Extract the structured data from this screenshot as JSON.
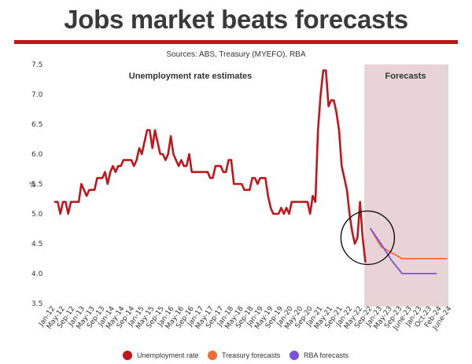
{
  "header": {
    "title": "Jobs market beats forecasts",
    "subtitle": "Sources: ABS, Treasury (MYEFO), RBA"
  },
  "colors": {
    "unemployment": "#c0161b",
    "treasury": "#f26b3a",
    "rba": "#7b52d9",
    "forecast_band": "#e8d4d6",
    "title_rule": "#c0161b",
    "circle": "#111111"
  },
  "chart_data": {
    "type": "line",
    "title": "Jobs market beats forecasts",
    "subtitle": "Sources: ABS, Treasury (MYEFO), RBA",
    "ylabel": "%",
    "xlabel": "",
    "ylim": [
      3.5,
      7.5
    ],
    "yticks": [
      "7.5",
      "7.0",
      "6.5",
      "6.0",
      "5.5",
      "5.0",
      "4.5",
      "4.0",
      "3.5"
    ],
    "xticks": [
      "Jan-12",
      "May-12",
      "Sep-12",
      "Jan-13",
      "May-13",
      "Sep-13",
      "Jan-14",
      "May-14",
      "Sep-14",
      "Jan-15",
      "May-15",
      "Sep-15",
      "Jan-16",
      "May-16",
      "Sep-16",
      "Jan-17",
      "May-17",
      "Sep-17",
      "Jan-18",
      "May-18",
      "Sep-18",
      "Jan-19",
      "May-19",
      "Sep-19",
      "Jan-20",
      "May-20",
      "Sep-20",
      "Jan-21",
      "May-21",
      "Sep-21",
      "Jan-22",
      "May-22",
      "Sep-22",
      "Jan-23",
      "May-23",
      "Sep-23",
      "June-23",
      "Jan-23",
      "Oct-23",
      "Feb-24",
      "June-24"
    ],
    "grid": false,
    "legend_position": "bottom",
    "regions": [
      {
        "label": "Unemployment rate estimates"
      },
      {
        "label": "Forecasts",
        "from": "Jan-22",
        "to": "June-24"
      }
    ],
    "series": [
      {
        "name": "Unemployment rate",
        "color": "#c0161b",
        "points": [
          [
            "Jan-12",
            5.2
          ],
          [
            "Feb-12",
            5.2
          ],
          [
            "Mar-12",
            5.0
          ],
          [
            "Apr-12",
            5.2
          ],
          [
            "May-12",
            5.2
          ],
          [
            "Jun-12",
            5.0
          ],
          [
            "Jul-12",
            5.2
          ],
          [
            "Aug-12",
            5.2
          ],
          [
            "Sep-12",
            5.2
          ],
          [
            "Oct-12",
            5.2
          ],
          [
            "Nov-12",
            5.5
          ],
          [
            "Dec-12",
            5.4
          ],
          [
            "Jan-13",
            5.3
          ],
          [
            "Feb-13",
            5.4
          ],
          [
            "Mar-13",
            5.4
          ],
          [
            "Apr-13",
            5.4
          ],
          [
            "May-13",
            5.6
          ],
          [
            "Jun-13",
            5.6
          ],
          [
            "Jul-13",
            5.6
          ],
          [
            "Aug-13",
            5.7
          ],
          [
            "Sep-13",
            5.5
          ],
          [
            "Oct-13",
            5.7
          ],
          [
            "Nov-13",
            5.8
          ],
          [
            "Dec-13",
            5.7
          ],
          [
            "Jan-14",
            5.8
          ],
          [
            "Feb-14",
            5.8
          ],
          [
            "Mar-14",
            5.9
          ],
          [
            "Apr-14",
            5.9
          ],
          [
            "May-14",
            5.9
          ],
          [
            "Jun-14",
            5.9
          ],
          [
            "Jul-14",
            5.8
          ],
          [
            "Aug-14",
            5.9
          ],
          [
            "Sep-14",
            6.1
          ],
          [
            "Oct-14",
            6.0
          ],
          [
            "Nov-14",
            6.2
          ],
          [
            "Dec-14",
            6.4
          ],
          [
            "Jan-15",
            6.4
          ],
          [
            "Feb-15",
            6.1
          ],
          [
            "Mar-15",
            6.4
          ],
          [
            "Apr-15",
            6.2
          ],
          [
            "May-15",
            6.0
          ],
          [
            "Jun-15",
            6.0
          ],
          [
            "Jul-15",
            5.9
          ],
          [
            "Aug-15",
            6.0
          ],
          [
            "Sep-15",
            6.3
          ],
          [
            "Oct-15",
            6.0
          ],
          [
            "Nov-15",
            5.9
          ],
          [
            "Dec-15",
            5.8
          ],
          [
            "Jan-16",
            5.9
          ],
          [
            "Feb-16",
            5.8
          ],
          [
            "Mar-16",
            5.8
          ],
          [
            "Apr-16",
            6.0
          ],
          [
            "May-16",
            5.7
          ],
          [
            "Jun-16",
            5.7
          ],
          [
            "Jul-16",
            5.7
          ],
          [
            "Aug-16",
            5.7
          ],
          [
            "Sep-16",
            5.7
          ],
          [
            "Oct-16",
            5.7
          ],
          [
            "Nov-16",
            5.7
          ],
          [
            "Dec-16",
            5.6
          ],
          [
            "Jan-17",
            5.6
          ],
          [
            "Feb-17",
            5.8
          ],
          [
            "Mar-17",
            5.8
          ],
          [
            "Apr-17",
            5.8
          ],
          [
            "May-17",
            5.7
          ],
          [
            "Jun-17",
            5.7
          ],
          [
            "Jul-17",
            5.9
          ],
          [
            "Aug-17",
            5.9
          ],
          [
            "Sep-17",
            5.5
          ],
          [
            "Oct-17",
            5.5
          ],
          [
            "Nov-17",
            5.5
          ],
          [
            "Dec-17",
            5.5
          ],
          [
            "Jan-18",
            5.4
          ],
          [
            "Feb-18",
            5.4
          ],
          [
            "Mar-18",
            5.4
          ],
          [
            "Apr-18",
            5.6
          ],
          [
            "May-18",
            5.6
          ],
          [
            "Jun-18",
            5.5
          ],
          [
            "Jul-18",
            5.6
          ],
          [
            "Aug-18",
            5.6
          ],
          [
            "Sep-18",
            5.6
          ],
          [
            "Oct-18",
            5.3
          ],
          [
            "Nov-18",
            5.1
          ],
          [
            "Dec-18",
            5.0
          ],
          [
            "Jan-19",
            5.0
          ],
          [
            "Feb-19",
            5.0
          ],
          [
            "Mar-19",
            5.1
          ],
          [
            "Apr-19",
            5.0
          ],
          [
            "May-19",
            5.1
          ],
          [
            "Jun-19",
            5.0
          ],
          [
            "Jul-19",
            5.2
          ],
          [
            "Aug-19",
            5.2
          ],
          [
            "Sep-19",
            5.2
          ],
          [
            "Oct-19",
            5.2
          ],
          [
            "Nov-19",
            5.2
          ],
          [
            "Dec-19",
            5.2
          ],
          [
            "Jan-20",
            5.2
          ],
          [
            "Feb-20",
            5.0
          ],
          [
            "Mar-20",
            5.3
          ],
          [
            "Apr-20",
            5.2
          ],
          [
            "May-20",
            6.4
          ],
          [
            "Jun-20",
            7.0
          ],
          [
            "Jul-20",
            7.4
          ],
          [
            "Aug-20",
            7.4
          ],
          [
            "Sep-20",
            6.8
          ],
          [
            "Oct-20",
            6.9
          ],
          [
            "Nov-20",
            6.9
          ],
          [
            "Dec-20",
            6.7
          ],
          [
            "Jan-21",
            6.4
          ],
          [
            "Feb-21",
            5.8
          ],
          [
            "Mar-21",
            5.6
          ],
          [
            "Apr-21",
            5.4
          ],
          [
            "May-21",
            5.0
          ],
          [
            "Jun-21",
            4.7
          ],
          [
            "Jul-21",
            4.5
          ],
          [
            "Aug-21",
            4.6
          ],
          [
            "Sep-21",
            5.2
          ],
          [
            "Oct-21",
            4.6
          ],
          [
            "Nov-21",
            4.2
          ]
        ]
      },
      {
        "name": "Treasury forecasts",
        "color": "#f26b3a",
        "points": [
          [
            "Jan-22",
            4.75
          ],
          [
            "May-22",
            4.45
          ],
          [
            "Sep-22",
            4.35
          ],
          [
            "Jan-23",
            4.25
          ],
          [
            "Jun-24",
            4.25
          ]
        ]
      },
      {
        "name": "RBA forecasts",
        "color": "#7b52d9",
        "points": [
          [
            "Jan-22",
            4.75
          ],
          [
            "May-22",
            4.5
          ],
          [
            "Sep-22",
            4.22
          ],
          [
            "Jan-23",
            4.0
          ],
          [
            "Oct-23",
            4.0
          ],
          [
            "Feb-24",
            4.0
          ]
        ]
      }
    ],
    "annotations": [
      {
        "type": "circle",
        "around": "Nov-21",
        "value": 4.6,
        "color": "#111111"
      }
    ]
  }
}
